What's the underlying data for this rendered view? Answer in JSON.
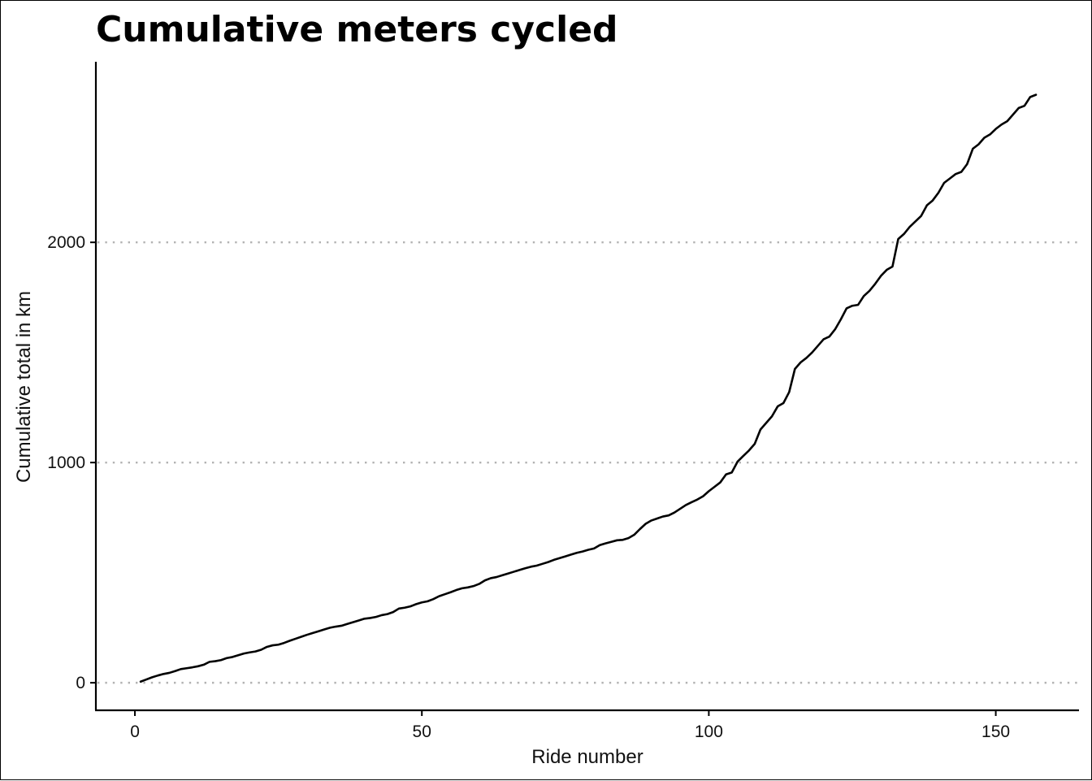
{
  "chart_data": {
    "type": "line",
    "title": "Cumulative meters cycled",
    "xlabel": "Ride number",
    "ylabel": "Cumulative total in km",
    "xlim": [
      -6.8,
      164.5
    ],
    "ylim": [
      -125,
      2820
    ],
    "x_ticks": [
      0,
      50,
      100,
      150
    ],
    "y_ticks": [
      0,
      1000,
      2000
    ],
    "grid": "horizontal dotted at y ticks",
    "legend": "none",
    "series": [
      {
        "x": [
          1,
          2,
          3,
          4,
          5,
          6,
          7,
          8,
          9,
          10,
          11,
          12,
          13,
          14,
          15,
          16,
          17,
          18,
          19,
          20,
          21,
          22,
          23,
          24,
          25,
          26,
          27,
          28,
          29,
          30,
          31,
          32,
          33,
          34,
          35,
          36,
          37,
          38,
          39,
          40,
          41,
          42,
          43,
          44,
          45,
          46,
          47,
          48,
          49,
          50,
          51,
          52,
          53,
          54,
          55,
          56,
          57,
          58,
          59,
          60,
          61,
          62,
          63,
          64,
          65,
          66,
          67,
          68,
          69,
          70,
          71,
          72,
          73,
          74,
          75,
          76,
          77,
          78,
          79,
          80,
          81,
          82,
          83,
          84,
          85,
          86,
          87,
          88,
          89,
          90,
          91,
          92,
          93,
          94,
          95,
          96,
          97,
          98,
          99,
          100,
          101,
          102,
          103,
          104,
          105,
          106,
          107,
          108,
          109,
          110,
          111,
          112,
          113,
          114,
          115,
          116,
          117,
          118,
          119,
          120,
          121,
          122,
          123,
          124,
          125,
          126,
          127,
          128,
          129,
          130,
          131,
          132,
          133,
          134,
          135,
          136,
          137,
          138,
          139,
          140,
          141,
          142,
          143,
          144,
          145,
          146,
          147,
          148,
          149,
          150,
          151,
          152,
          153,
          154,
          155,
          156,
          157
        ],
        "y": [
          5,
          15,
          25,
          33,
          40,
          45,
          53,
          62,
          66,
          70,
          75,
          82,
          95,
          98,
          103,
          112,
          117,
          125,
          133,
          138,
          142,
          150,
          163,
          170,
          173,
          181,
          191,
          200,
          209,
          218,
          226,
          234,
          242,
          250,
          255,
          259,
          267,
          275,
          283,
          291,
          294,
          299,
          307,
          312,
          321,
          337,
          341,
          347,
          357,
          365,
          370,
          380,
          393,
          402,
          411,
          421,
          429,
          433,
          439,
          449,
          465,
          475,
          480,
          488,
          496,
          504,
          512,
          520,
          527,
          532,
          540,
          548,
          558,
          566,
          574,
          582,
          590,
          596,
          604,
          610,
          625,
          633,
          640,
          647,
          649,
          657,
          672,
          698,
          722,
          737,
          746,
          755,
          760,
          773,
          790,
          807,
          820,
          832,
          847,
          870,
          890,
          910,
          946,
          955,
          1004,
          1030,
          1055,
          1085,
          1150,
          1180,
          1210,
          1255,
          1270,
          1320,
          1425,
          1455,
          1475,
          1500,
          1530,
          1560,
          1572,
          1605,
          1650,
          1700,
          1712,
          1716,
          1756,
          1780,
          1812,
          1848,
          1875,
          1890,
          2015,
          2038,
          2070,
          2095,
          2120,
          2168,
          2190,
          2225,
          2270,
          2290,
          2310,
          2320,
          2355,
          2425,
          2445,
          2475,
          2490,
          2515,
          2535,
          2550,
          2580,
          2610,
          2620,
          2660,
          2670
        ]
      }
    ]
  }
}
